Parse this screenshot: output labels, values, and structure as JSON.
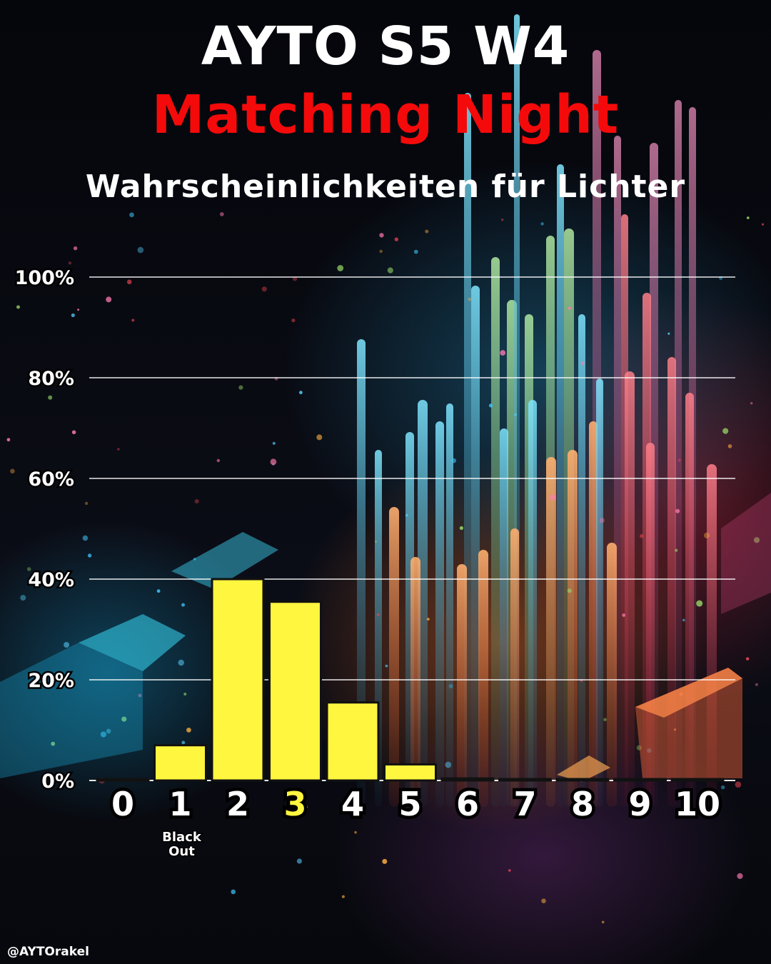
{
  "header": {
    "title": "AYTO S5  W4",
    "subtitle": "Matching Night",
    "caption": "Wahrscheinlichkeiten für Lichter"
  },
  "footer": {
    "handle": "@AYTOrakel"
  },
  "chart_data": {
    "type": "bar",
    "title": "",
    "xlabel": "",
    "ylabel": "",
    "categories": [
      "0",
      "1",
      "2",
      "3",
      "4",
      "5",
      "6",
      "7",
      "8",
      "9",
      "10"
    ],
    "values": [
      0,
      7,
      40,
      35.5,
      15.5,
      3.2,
      0.4,
      0,
      0,
      0,
      0
    ],
    "ylim": [
      0,
      100
    ],
    "yticks": [
      0,
      20,
      40,
      60,
      80,
      100
    ],
    "ytick_labels": [
      "0%",
      "20%",
      "40%",
      "60%",
      "80%",
      "100%"
    ],
    "highlighted_category": "3",
    "annotations": [
      {
        "category": "1",
        "text": [
          "Black",
          "Out"
        ]
      }
    ],
    "grid": true,
    "legend": "none",
    "colors": {
      "bar": "#fff63f",
      "bar_outline": "#111111",
      "highlight_label": "#fff63f",
      "grid": "#ffffff",
      "subtitle": "#f40a0a",
      "title": "#ffffff"
    }
  }
}
